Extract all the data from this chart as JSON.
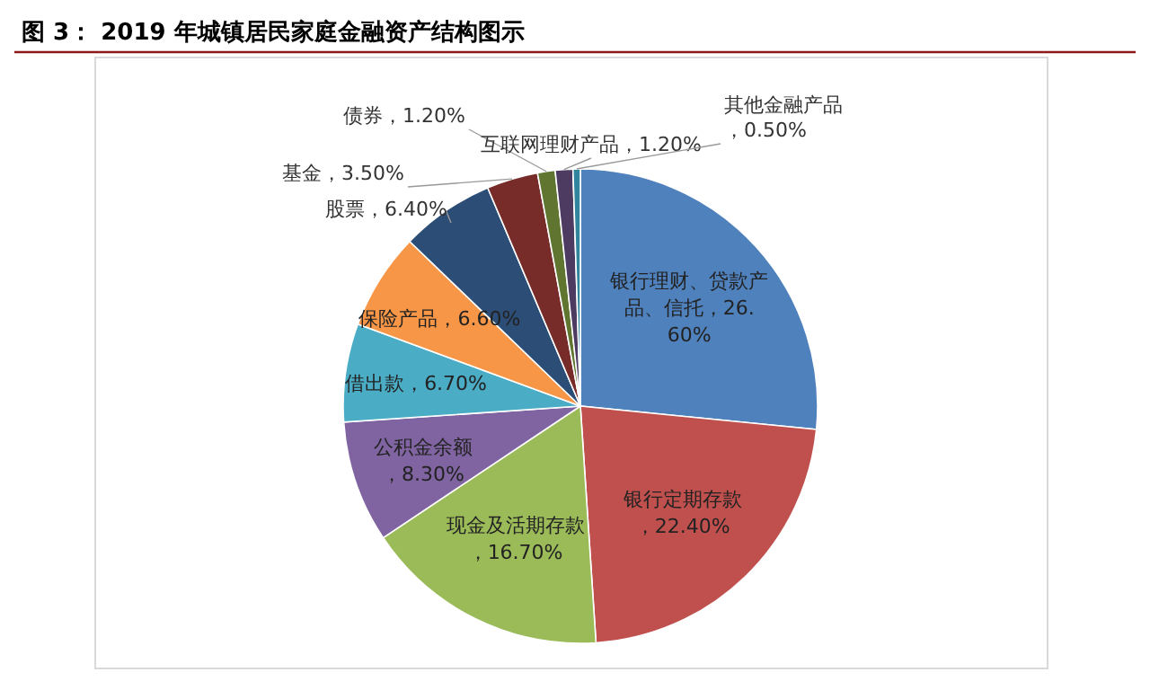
{
  "chart_data": {
    "type": "pie",
    "title": "图 3： 2019 年城镇居民家庭金融资产结构图示",
    "categories": [
      "银行理财、贷款产品、信托",
      "银行定期存款",
      "现金及活期存款",
      "公积金余额",
      "借出款",
      "保险产品",
      "股票",
      "基金",
      "债券",
      "互联网理财产品",
      "其他金融产品"
    ],
    "values": [
      26.6,
      22.4,
      16.7,
      8.3,
      6.7,
      6.6,
      6.4,
      3.5,
      1.2,
      1.2,
      0.5
    ],
    "value_labels": [
      "，26.60%",
      "，22.40%",
      "，16.70%",
      "，8.30%",
      "，6.70%",
      "，6.60%",
      "，6.40%",
      "，3.50%",
      "，1.20%",
      "，1.20%",
      "，0.50%"
    ],
    "colors": [
      "#4f81bd",
      "#c0504d",
      "#9bbb59",
      "#8064a2",
      "#4bacc6",
      "#f79646",
      "#2c4d75",
      "#772c2a",
      "#5f7530",
      "#4d3b62",
      "#31859c"
    ]
  }
}
